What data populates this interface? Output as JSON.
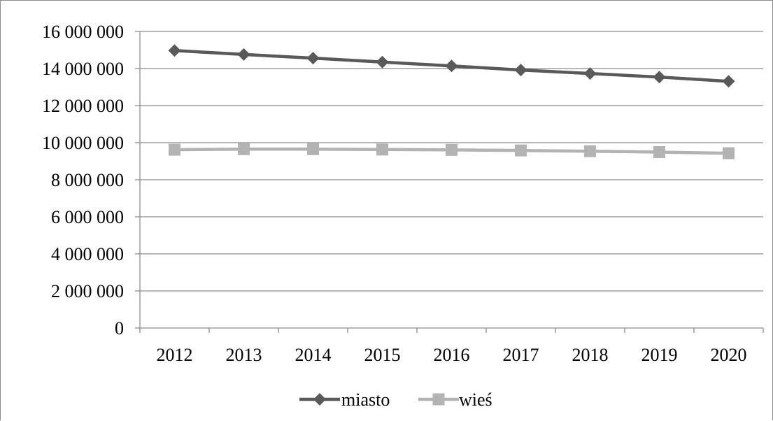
{
  "chart_data": {
    "type": "line",
    "title": "",
    "xlabel": "",
    "ylabel": "",
    "categories": [
      "2012",
      "2013",
      "2014",
      "2015",
      "2016",
      "2017",
      "2018",
      "2019",
      "2020"
    ],
    "ylim": [
      0,
      16000000
    ],
    "yticks": [
      {
        "value": 0,
        "label": "0"
      },
      {
        "value": 2000000,
        "label": "2 000 000"
      },
      {
        "value": 4000000,
        "label": "4 000 000"
      },
      {
        "value": 6000000,
        "label": "6 000 000"
      },
      {
        "value": 8000000,
        "label": "8 000 000"
      },
      {
        "value": 10000000,
        "label": "10 000 000"
      },
      {
        "value": 12000000,
        "label": "12 000 000"
      },
      {
        "value": 14000000,
        "label": "14 000 000"
      },
      {
        "value": 16000000,
        "label": "16 000 000"
      }
    ],
    "grid": "horizontal",
    "legend_position": "bottom",
    "series": [
      {
        "name": "miasto",
        "color": "#595959",
        "marker": "diamond",
        "values": [
          14970000,
          14760000,
          14560000,
          14350000,
          14140000,
          13920000,
          13730000,
          13540000,
          13310000
        ]
      },
      {
        "name": "wieś",
        "color": "#b3b3b3",
        "marker": "square",
        "values": [
          9620000,
          9650000,
          9650000,
          9630000,
          9610000,
          9580000,
          9540000,
          9490000,
          9430000
        ]
      }
    ]
  }
}
